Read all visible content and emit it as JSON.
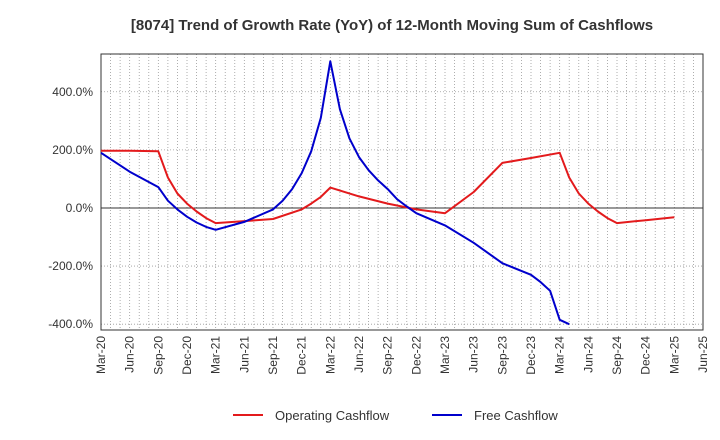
{
  "chart_data": {
    "type": "line",
    "title": "[8074]  Trend of Growth Rate (YoY) of 12-Month Moving Sum of Cashflows",
    "xlabel": "",
    "ylabel": "",
    "ylim": [
      -420,
      530
    ],
    "xlim": [
      "2020-03",
      "2025-06"
    ],
    "yticks": [
      -400,
      -200,
      0,
      200,
      400
    ],
    "ytick_labels": [
      "-400.0%",
      "-200.0%",
      "0.0%",
      "200.0%",
      "400.0%"
    ],
    "xtick_labels": [
      "Mar-20",
      "Jun-20",
      "Sep-20",
      "Dec-20",
      "Mar-21",
      "Jun-21",
      "Sep-21",
      "Dec-21",
      "Mar-22",
      "Jun-22",
      "Sep-22",
      "Dec-22",
      "Mar-23",
      "Jun-23",
      "Sep-23",
      "Dec-23",
      "Mar-24",
      "Jun-24",
      "Sep-24",
      "Dec-24",
      "Mar-25",
      "Jun-25"
    ],
    "grid": true,
    "legend_position": "bottom",
    "series": [
      {
        "name": "Operating Cashflow",
        "color": "#e31a1c",
        "points": [
          [
            "2020-03",
            197
          ],
          [
            "2020-06",
            197
          ],
          [
            "2020-09",
            195
          ],
          [
            "2020-10",
            105
          ],
          [
            "2020-11",
            50
          ],
          [
            "2020-12",
            15
          ],
          [
            "2021-01",
            -12
          ],
          [
            "2021-02",
            -35
          ],
          [
            "2021-03",
            -52
          ],
          [
            "2021-06",
            -45
          ],
          [
            "2021-09",
            -38
          ],
          [
            "2021-12",
            -5
          ],
          [
            "2022-01",
            15
          ],
          [
            "2022-02",
            38
          ],
          [
            "2022-03",
            70
          ],
          [
            "2022-06",
            40
          ],
          [
            "2022-09",
            15
          ],
          [
            "2022-12",
            -5
          ],
          [
            "2023-03",
            -18
          ],
          [
            "2023-06",
            55
          ],
          [
            "2023-09",
            155
          ],
          [
            "2023-12",
            172
          ],
          [
            "2024-03",
            190
          ],
          [
            "2024-04",
            105
          ],
          [
            "2024-05",
            50
          ],
          [
            "2024-06",
            15
          ],
          [
            "2024-07",
            -12
          ],
          [
            "2024-08",
            -35
          ],
          [
            "2024-09",
            -52
          ],
          [
            "2024-12",
            -42
          ],
          [
            "2025-03",
            -32
          ]
        ]
      },
      {
        "name": "Free Cashflow",
        "color": "#0000cc",
        "points": [
          [
            "2020-03",
            190
          ],
          [
            "2020-06",
            125
          ],
          [
            "2020-09",
            72
          ],
          [
            "2020-10",
            25
          ],
          [
            "2020-11",
            -5
          ],
          [
            "2020-12",
            -30
          ],
          [
            "2021-01",
            -50
          ],
          [
            "2021-02",
            -65
          ],
          [
            "2021-03",
            -75
          ],
          [
            "2021-06",
            -48
          ],
          [
            "2021-09",
            -5
          ],
          [
            "2021-10",
            25
          ],
          [
            "2021-11",
            65
          ],
          [
            "2021-12",
            120
          ],
          [
            "2022-01",
            195
          ],
          [
            "2022-02",
            310
          ],
          [
            "2022-03",
            505
          ],
          [
            "2022-04",
            340
          ],
          [
            "2022-05",
            240
          ],
          [
            "2022-06",
            175
          ],
          [
            "2022-07",
            130
          ],
          [
            "2022-08",
            95
          ],
          [
            "2022-09",
            65
          ],
          [
            "2022-10",
            30
          ],
          [
            "2022-11",
            5
          ],
          [
            "2022-12",
            -18
          ],
          [
            "2023-03",
            -60
          ],
          [
            "2023-06",
            -120
          ],
          [
            "2023-09",
            -190
          ],
          [
            "2023-12",
            -230
          ],
          [
            "2024-01",
            -255
          ],
          [
            "2024-02",
            -285
          ],
          [
            "2024-03",
            -385
          ],
          [
            "2024-04",
            -400
          ]
        ]
      }
    ]
  }
}
